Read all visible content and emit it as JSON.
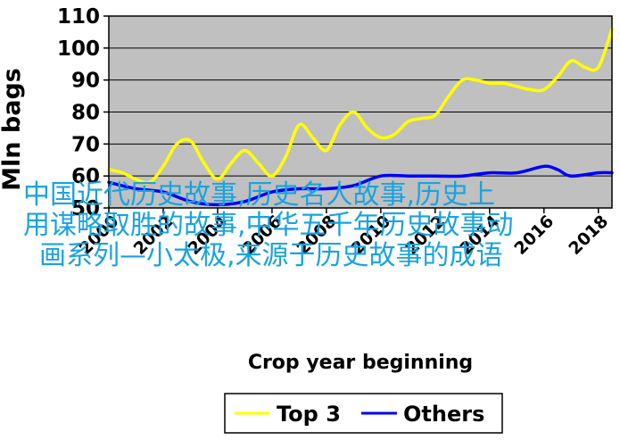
{
  "chart_data": {
    "type": "line",
    "title": "",
    "xlabel": "Crop year beginning",
    "ylabel": "Mln bags",
    "ylim": [
      50,
      110
    ],
    "xlim": [
      2000,
      2018
    ],
    "yticks": [
      50,
      60,
      70,
      80,
      90,
      100,
      110
    ],
    "xticks": [
      2000,
      2002,
      2004,
      2006,
      2008,
      2010,
      2012,
      2014,
      2016,
      2018
    ],
    "grid": "horizontal",
    "legend_position": "bottom",
    "series": [
      {
        "name": "Top 3",
        "color": "#ffff00",
        "x": [
          2000,
          2000.5,
          2001,
          2001.5,
          2002,
          2002.5,
          2003,
          2003.5,
          2004,
          2004.5,
          2005,
          2005.5,
          2006,
          2006.5,
          2007,
          2007.5,
          2008,
          2008.5,
          2009,
          2009.5,
          2010,
          2010.5,
          2011,
          2011.5,
          2012,
          2012.5,
          2013,
          2013.5,
          2014,
          2014.5,
          2015,
          2015.5,
          2016,
          2016.5,
          2017,
          2017.5,
          2018,
          2018.5
        ],
        "values": [
          62,
          61,
          59,
          58,
          63,
          70,
          71,
          64,
          59,
          64,
          68,
          64,
          60,
          66,
          76,
          72,
          68,
          76,
          80,
          75,
          72,
          73,
          77,
          78,
          79,
          85,
          90,
          90,
          89,
          89,
          88,
          87,
          87,
          91,
          96,
          94,
          94,
          106
        ]
      },
      {
        "name": "Others",
        "color": "#0000ff",
        "x": [
          2000,
          2001,
          2002,
          2003,
          2004,
          2005,
          2006,
          2007,
          2008,
          2009,
          2010,
          2011,
          2012,
          2013,
          2014,
          2015,
          2016,
          2016.5,
          2017,
          2018,
          2018.5
        ],
        "values": [
          58,
          56,
          55,
          52,
          51,
          52,
          55,
          56,
          56,
          57,
          60,
          60,
          60,
          60,
          61,
          61,
          63,
          62,
          60,
          61,
          61
        ]
      }
    ]
  },
  "overlay": {
    "lines": [
      "中国近代历史故事,历史名人故事,历史上",
      "用谋略取胜的故事,中华五千年历史故事动",
      "画系列—小太极,来源于历史故事的成语"
    ],
    "color": "#19a3e0"
  }
}
